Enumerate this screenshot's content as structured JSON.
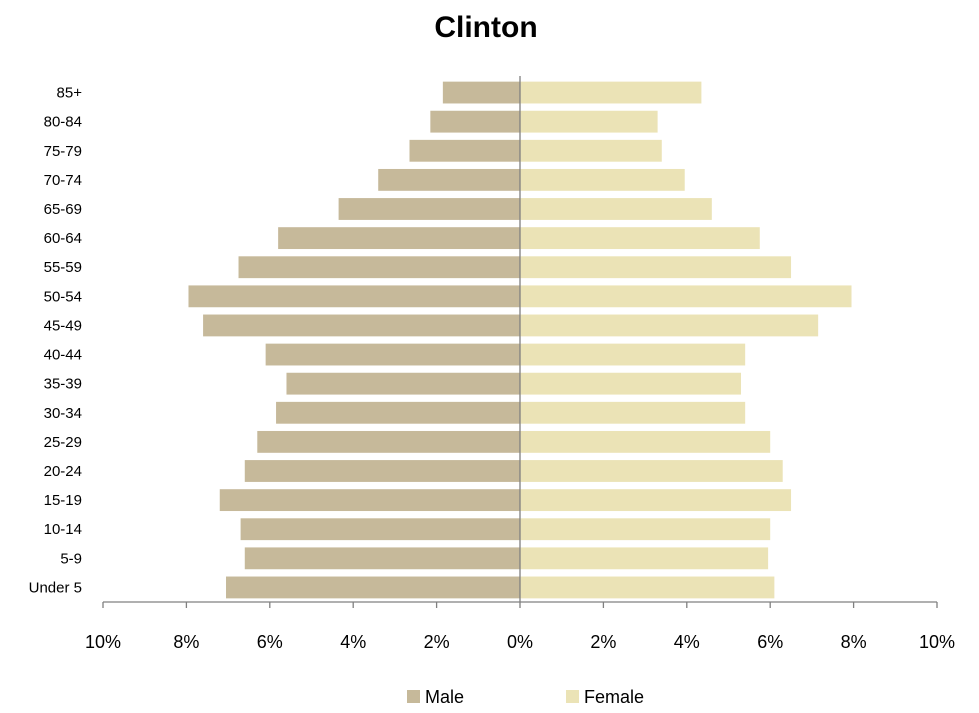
{
  "chart_data": {
    "type": "bar",
    "orientation": "horizontal",
    "title": "Clinton",
    "categories": [
      "Under 5",
      "5-9",
      "10-14",
      "15-19",
      "20-24",
      "25-29",
      "30-34",
      "35-39",
      "40-44",
      "45-49",
      "50-54",
      "55-59",
      "60-64",
      "65-69",
      "70-74",
      "75-79",
      "80-84",
      "85+"
    ],
    "series": [
      {
        "name": "Male",
        "color": "#c6b99a",
        "values": [
          7.05,
          6.6,
          6.7,
          7.2,
          6.6,
          6.3,
          5.85,
          5.6,
          6.1,
          7.6,
          7.95,
          6.75,
          5.8,
          4.35,
          3.4,
          2.65,
          2.15,
          1.85
        ]
      },
      {
        "name": "Female",
        "color": "#ebe3b6",
        "values": [
          6.1,
          5.95,
          6.0,
          6.5,
          6.3,
          6.0,
          5.4,
          5.3,
          5.4,
          7.15,
          7.95,
          6.5,
          5.75,
          4.6,
          3.95,
          3.4,
          3.3,
          4.35
        ]
      }
    ],
    "xlim": [
      -10,
      10
    ],
    "xticks": [
      -10,
      -8,
      -6,
      -4,
      -2,
      0,
      2,
      4,
      6,
      8,
      10
    ],
    "xtick_labels": [
      "10%",
      "8%",
      "6%",
      "4%",
      "2%",
      "0%",
      "2%",
      "4%",
      "6%",
      "8%",
      "10%"
    ],
    "xlabel": "",
    "ylabel": "",
    "grid": false,
    "legend_position": "bottom"
  }
}
